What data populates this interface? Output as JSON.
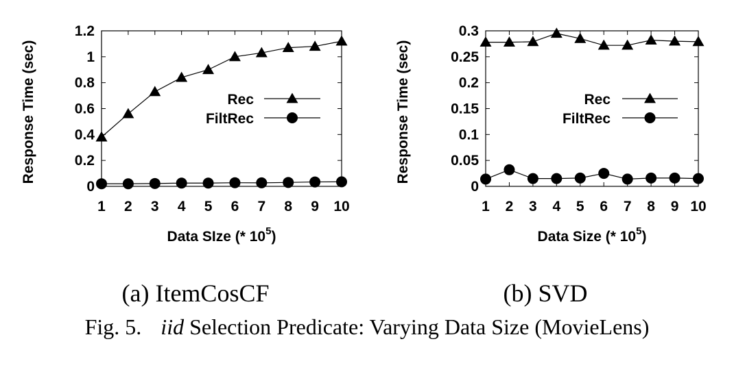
{
  "chart_data": [
    {
      "type": "line",
      "caption": "(a) ItemCosCF",
      "xlabel": "Data SIze (* 10",
      "xlabel_exp": "5",
      "xlabel_close": ")",
      "ylabel": "Response Time (sec)",
      "x": [
        1,
        2,
        3,
        4,
        5,
        6,
        7,
        8,
        9,
        10
      ],
      "xlim": [
        1,
        10
      ],
      "ylim": [
        0,
        1.2
      ],
      "yticks": [
        "0",
        "0.2",
        "0.4",
        "0.6",
        "0.8",
        "1",
        "1.2"
      ],
      "xticks": [
        "1",
        "2",
        "3",
        "4",
        "5",
        "6",
        "7",
        "8",
        "9",
        "10"
      ],
      "legend_position": "center-right",
      "grid": false,
      "series": [
        {
          "name": "Rec",
          "marker": "triangle",
          "values": [
            0.38,
            0.56,
            0.73,
            0.84,
            0.9,
            1.0,
            1.03,
            1.07,
            1.08,
            1.12
          ]
        },
        {
          "name": "FiltRec",
          "marker": "circle",
          "values": [
            0.02,
            0.02,
            0.022,
            0.025,
            0.025,
            0.028,
            0.027,
            0.03,
            0.034,
            0.035
          ]
        }
      ]
    },
    {
      "type": "line",
      "caption": "(b) SVD",
      "xlabel": "Data Size (* 10",
      "xlabel_exp": "5",
      "xlabel_close": ")",
      "ylabel": "Response Time (sec)",
      "x": [
        1,
        2,
        3,
        4,
        5,
        6,
        7,
        8,
        9,
        10
      ],
      "xlim": [
        1,
        10
      ],
      "ylim": [
        0,
        0.3
      ],
      "yticks": [
        "0",
        "0.05",
        "0.1",
        "0.15",
        "0.2",
        "0.25",
        "0.3"
      ],
      "xticks": [
        "1",
        "2",
        "3",
        "4",
        "5",
        "6",
        "7",
        "8",
        "9",
        "10"
      ],
      "legend_position": "center-right",
      "grid": false,
      "series": [
        {
          "name": "Rec",
          "marker": "triangle",
          "values": [
            0.278,
            0.278,
            0.279,
            0.295,
            0.285,
            0.272,
            0.272,
            0.282,
            0.28,
            0.279
          ]
        },
        {
          "name": "FiltRec",
          "marker": "circle",
          "values": [
            0.014,
            0.032,
            0.015,
            0.015,
            0.016,
            0.025,
            0.014,
            0.016,
            0.016,
            0.015
          ]
        }
      ]
    }
  ],
  "figure_caption": {
    "prefix": "Fig. 5.",
    "italic": "iid",
    "rest": " Selection Predicate: Varying Data Size (MovieLens)"
  }
}
